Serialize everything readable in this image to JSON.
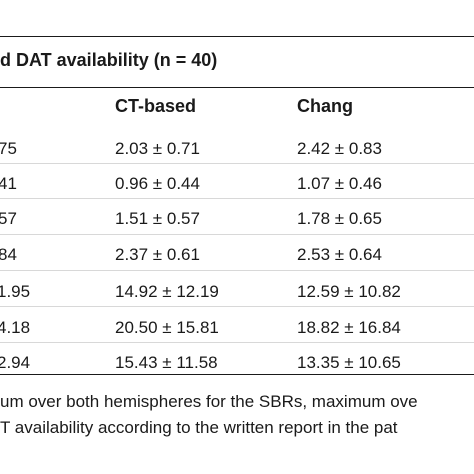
{
  "table": {
    "title": "d DAT availability (n = 40)",
    "headers": [
      "",
      "CT-based",
      "Chang"
    ],
    "rows": [
      [
        "75",
        "2.03 ± 0.71",
        "2.42 ± 0.83"
      ],
      [
        "41",
        "0.96 ± 0.44",
        "1.07 ± 0.46"
      ],
      [
        "57",
        "1.51 ± 0.57",
        "1.78 ± 0.65"
      ],
      [
        "84",
        "2.37 ± 0.61",
        "2.53 ± 0.64"
      ],
      "row-placeholder",
      [
        "4.18",
        "20.50 ± 15.81",
        "18.82 ± 16.84"
      ],
      [
        "2.94",
        "15.43 ± 11.58",
        "13.35 ± 10.65"
      ]
    ],
    "footnotes": [
      "um over both hemispheres for the SBRs, maximum ove",
      "T availability according to the written report in the pat"
    ]
  }
}
